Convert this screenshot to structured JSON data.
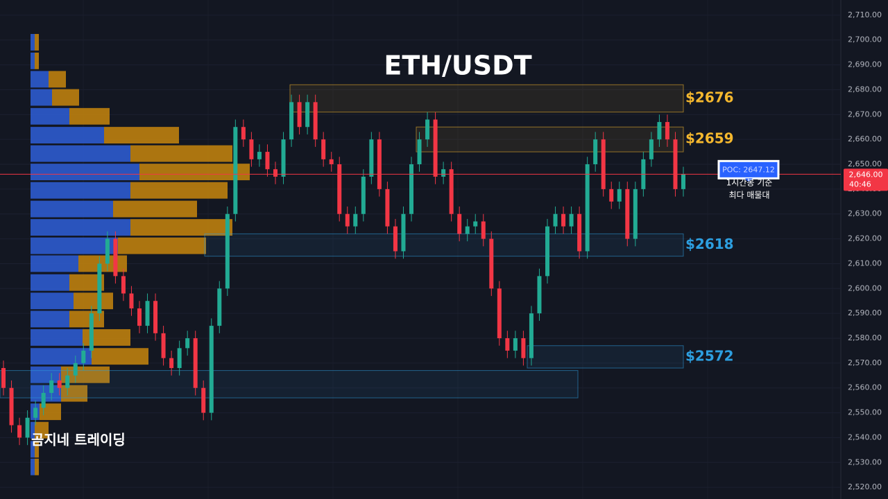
{
  "chart_data": {
    "type": "candlestick",
    "title": "ETH/USDT",
    "watermark": "곰지네 트레이딩",
    "up_color": "#22ab94",
    "down_color": "#f23645",
    "grid": true,
    "ylim": [
      2515.3,
      2716.1
    ],
    "yticks": [
      {
        "value": 2520,
        "label": "2,520.00"
      },
      {
        "value": 2530,
        "label": "2,530.00"
      },
      {
        "value": 2540,
        "label": "2,540.00"
      },
      {
        "value": 2550,
        "label": "2,550.00"
      },
      {
        "value": 2560,
        "label": "2,560.00"
      },
      {
        "value": 2570,
        "label": "2,570.00"
      },
      {
        "value": 2580,
        "label": "2,580.00"
      },
      {
        "value": 2590,
        "label": "2,590.00"
      },
      {
        "value": 2600,
        "label": "2,600.00"
      },
      {
        "value": 2610,
        "label": "2,610.00"
      },
      {
        "value": 2620,
        "label": "2,620.00"
      },
      {
        "value": 2630,
        "label": "2,630.00"
      },
      {
        "value": 2640,
        "label": "2,640.00"
      },
      {
        "value": 2650,
        "label": "2,650.00"
      },
      {
        "value": 2660,
        "label": "2,660.00"
      },
      {
        "value": 2670,
        "label": "2,670.00"
      },
      {
        "value": 2680,
        "label": "2,680.00"
      },
      {
        "value": 2690,
        "label": "2,690.00"
      },
      {
        "value": 2700,
        "label": "2,700.00"
      },
      {
        "value": 2710,
        "label": "2,710.00"
      }
    ],
    "open": [
      2568,
      2560,
      2545,
      2540,
      2548,
      2552,
      2558,
      2563,
      2560,
      2565,
      2570,
      2575,
      2590,
      2610,
      2620,
      2605,
      2598,
      2592,
      2585,
      2595,
      2582,
      2572,
      2568,
      2576,
      2580,
      2560,
      2550,
      2585,
      2600,
      2630,
      2665,
      2660,
      2652,
      2655,
      2648,
      2645,
      2660,
      2675,
      2665,
      2675,
      2660,
      2652,
      2650,
      2630,
      2625,
      2630,
      2645,
      2660,
      2640,
      2625,
      2615,
      2630,
      2650,
      2660,
      2668,
      2645,
      2648,
      2630,
      2622,
      2625,
      2627,
      2620,
      2600,
      2580,
      2575,
      2580,
      2572,
      2590,
      2605,
      2625,
      2630,
      2625,
      2630,
      2615,
      2650,
      2660,
      2640,
      2635,
      2640,
      2620,
      2640,
      2652,
      2660,
      2667,
      2660,
      2640
    ],
    "high": [
      2571,
      2563,
      2548,
      2551,
      2555,
      2561,
      2566,
      2566,
      2568,
      2573,
      2578,
      2593,
      2613,
      2623,
      2623,
      2608,
      2601,
      2595,
      2598,
      2598,
      2585,
      2575,
      2579,
      2583,
      2583,
      2563,
      2588,
      2603,
      2633,
      2668,
      2668,
      2663,
      2658,
      2658,
      2651,
      2663,
      2678,
      2678,
      2678,
      2678,
      2663,
      2655,
      2653,
      2633,
      2633,
      2648,
      2663,
      2663,
      2643,
      2628,
      2633,
      2653,
      2663,
      2671,
      2671,
      2651,
      2651,
      2633,
      2628,
      2630,
      2630,
      2623,
      2603,
      2583,
      2583,
      2583,
      2593,
      2608,
      2628,
      2633,
      2633,
      2633,
      2633,
      2653,
      2663,
      2663,
      2643,
      2643,
      2643,
      2643,
      2655,
      2663,
      2670,
      2670,
      2663,
      2649
    ],
    "low": [
      2557,
      2542,
      2537,
      2537,
      2545,
      2549,
      2555,
      2557,
      2557,
      2562,
      2567,
      2572,
      2587,
      2607,
      2602,
      2595,
      2589,
      2582,
      2582,
      2579,
      2569,
      2565,
      2565,
      2573,
      2557,
      2547,
      2547,
      2582,
      2597,
      2627,
      2657,
      2649,
      2649,
      2645,
      2642,
      2642,
      2657,
      2662,
      2662,
      2657,
      2649,
      2647,
      2627,
      2622,
      2622,
      2627,
      2642,
      2637,
      2622,
      2612,
      2612,
      2627,
      2647,
      2657,
      2642,
      2642,
      2627,
      2619,
      2619,
      2622,
      2617,
      2597,
      2577,
      2572,
      2572,
      2569,
      2569,
      2587,
      2602,
      2622,
      2622,
      2622,
      2612,
      2612,
      2647,
      2637,
      2632,
      2632,
      2617,
      2617,
      2637,
      2649,
      2657,
      2657,
      2637,
      2637
    ],
    "close": [
      2560,
      2545,
      2540,
      2548,
      2552,
      2558,
      2563,
      2560,
      2565,
      2570,
      2575,
      2590,
      2610,
      2620,
      2605,
      2598,
      2592,
      2585,
      2595,
      2582,
      2572,
      2568,
      2576,
      2580,
      2560,
      2550,
      2585,
      2600,
      2630,
      2665,
      2660,
      2652,
      2655,
      2648,
      2645,
      2660,
      2675,
      2665,
      2675,
      2660,
      2652,
      2650,
      2630,
      2625,
      2630,
      2645,
      2660,
      2640,
      2625,
      2615,
      2630,
      2650,
      2660,
      2668,
      2645,
      2648,
      2630,
      2622,
      2625,
      2627,
      2620,
      2600,
      2580,
      2575,
      2580,
      2572,
      2590,
      2605,
      2625,
      2630,
      2625,
      2630,
      2615,
      2650,
      2660,
      2640,
      2635,
      2640,
      2620,
      2640,
      2652,
      2660,
      2667,
      2660,
      2640,
      2646
    ],
    "volume_profile": {
      "buy_color": "#2f5fd8",
      "sell_color": "#c8860d",
      "levels": [
        2699.1,
        2691.6,
        2684.2,
        2676.9,
        2669.3,
        2661.7,
        2654.3,
        2646.9,
        2639.5,
        2632.0,
        2624.6,
        2617.2,
        2610.0,
        2602.4,
        2595.0,
        2587.7,
        2580.3,
        2572.7,
        2565.3,
        2557.8,
        2550.4,
        2543.0,
        2535.3,
        2528.2
      ],
      "buy": [
        6,
        6,
        26,
        31,
        56,
        106,
        144,
        157,
        144,
        119,
        144,
        126,
        69,
        56,
        62,
        56,
        75,
        88,
        44,
        44,
        13,
        6,
        6,
        6
      ],
      "sell": [
        6,
        6,
        25,
        39,
        58,
        108,
        147,
        159,
        140,
        121,
        147,
        127,
        70,
        50,
        57,
        50,
        69,
        82,
        70,
        38,
        31,
        20,
        6,
        6
      ]
    },
    "zones": [
      {
        "label": "$2676",
        "low": 2671,
        "high": 2682,
        "color": "#f5b82e"
      },
      {
        "label": "$2659",
        "low": 2655,
        "high": 2665,
        "color": "#f5b82e"
      },
      {
        "label": "$2618",
        "low": 2613,
        "high": 2622,
        "color": "#2d9fe0"
      },
      {
        "label": "$2572",
        "low": 2568,
        "high": 2577,
        "color": "#2d9fe0"
      },
      {
        "low": 2556,
        "high": 2567,
        "color": "#2d9fe0"
      }
    ],
    "last_price": {
      "value": 2646,
      "label": "2,646.00"
    },
    "countdown": "40:46",
    "poc": {
      "value": 2647.12,
      "label": "POC: 2647.12"
    },
    "poc_note": [
      "1시간봉 기준",
      "최다 매물대"
    ]
  }
}
